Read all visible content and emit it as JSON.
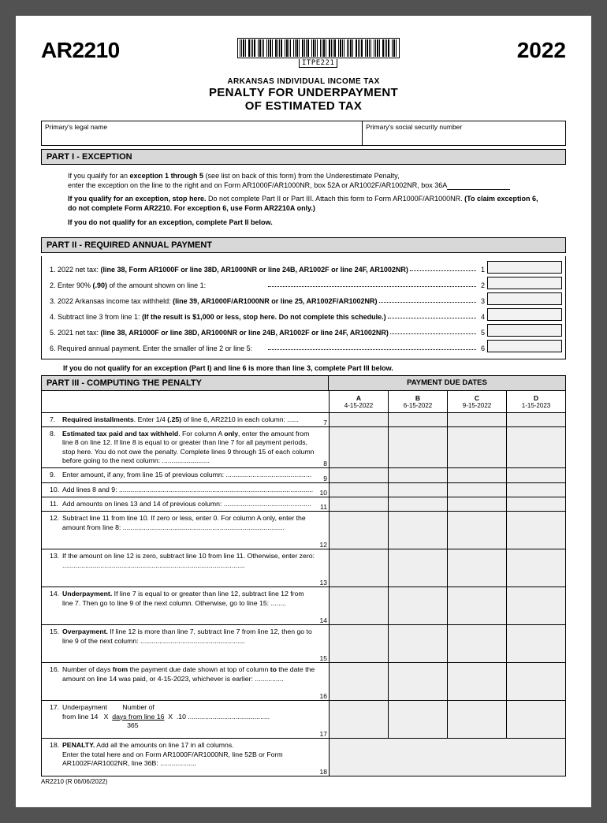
{
  "header": {
    "form_code": "AR2210",
    "barcode_label": "ITPE221",
    "year": "2022"
  },
  "title": {
    "line1": "ARKANSAS INDIVIDUAL INCOME TAX",
    "line2": "PENALTY FOR UNDERPAYMENT",
    "line3": "OF ESTIMATED TAX"
  },
  "name_row": {
    "left_label": "Primary's legal name",
    "right_label": "Primary's social security number"
  },
  "part1": {
    "header": "PART I - EXCEPTION",
    "p1a": "If you qualify for an ",
    "p1b": "exception 1 through 5",
    "p1c": " (see list on back of this form) from the Underestimate Penalty,",
    "p1d": "enter the exception on the line to the right and on Form AR1000F/AR1000NR, box 52A or AR1002F/AR1002NR, box 36A",
    "p2a": "If you qualify for an exception, stop here.",
    "p2b": " Do not complete Part II or Part III. Attach this form to Form AR1000F/AR1000NR. ",
    "p2c": "(To claim exception 6, do not complete Form AR2210. For exception 6, use Form AR2210A only.)",
    "p3": "If you do not qualify for an exception, complete Part II below."
  },
  "part2": {
    "header": "PART II - REQUIRED ANNUAL PAYMENT",
    "lines": [
      {
        "n": "1.",
        "t1": "2022 net tax: ",
        "b": "(line 38, Form AR1000F or line 38D, AR1000NR or line 24B, AR1002F or line 24F, AR1002NR)",
        "t2": "",
        "num": "1"
      },
      {
        "n": "2.",
        "t1": "Enter 90% ",
        "b": "(.90)",
        "t2": " of the amount shown on line 1:",
        "num": "2"
      },
      {
        "n": "3.",
        "t1": "2022 Arkansas income tax withheld: ",
        "b": "(line 39, AR1000F/AR1000NR or line 25, AR1002F/AR1002NR)",
        "t2": "",
        "num": "3"
      },
      {
        "n": "4.",
        "t1": "Subtract line 3 from line 1: ",
        "b": "(If the result is $1,000 or less, stop here. Do not complete this schedule.)",
        "t2": "",
        "num": "4"
      },
      {
        "n": "5.",
        "t1": "2021 net tax: ",
        "b": "(line 38, AR1000F or line 38D, AR1000NR or line 24B, AR1002F or line 24F, AR1002NR)",
        "t2": "",
        "num": "5"
      },
      {
        "n": "6.",
        "t1": "Required annual payment. Enter the smaller of line 2 or line 5:",
        "b": "",
        "t2": "",
        "num": "6"
      }
    ],
    "callout": "If you do not qualify for an exception (Part I) and line 6 is more than line 3, complete Part III below."
  },
  "part3": {
    "header_left": "PART III - COMPUTING THE PENALTY",
    "header_right": "PAYMENT DUE DATES",
    "dates": [
      {
        "col": "A",
        "date": "4-15-2022"
      },
      {
        "col": "B",
        "date": "6-15-2022"
      },
      {
        "col": "C",
        "date": "9-15-2022"
      },
      {
        "col": "D",
        "date": "1-15-2023"
      }
    ],
    "rows": [
      {
        "n": "7.",
        "html": "<b>Required installments</b>. Enter 1/4 <b>(.25)</b> of line 6, AR2210 in each column: ......",
        "rn": "7",
        "cells": 4
      },
      {
        "n": "8.",
        "html": "<b>Estimated tax paid and tax withheld</b>. For column A <b>only</b>, enter the amount from line 8 on line 12. If line 8 is equal to or greater than line 7 for all payment periods, stop here. You do not owe the penalty. Complete lines 9 through 15 of each column before going to the next column: .........................",
        "rn": "8",
        "cells": 4,
        "tall": true
      },
      {
        "n": "9.",
        "html": "Enter amount, if any, from line 15 of previous column: .............................................",
        "rn": "9",
        "cells": 4
      },
      {
        "n": "10.",
        "html": "Add lines 8 and 9: ......................................................................................................",
        "rn": "10",
        "cells": 4
      },
      {
        "n": "11.",
        "html": "Add amounts on lines 13 and 14 of previous column: ..............................................",
        "rn": "11",
        "cells": 4
      },
      {
        "n": "12.",
        "html": "Subtract line 11 from line 10. If zero or less, enter 0. For column A only, enter the amount from line 8: .....................................................................................",
        "rn": "12",
        "cells": 4,
        "tall": true
      },
      {
        "n": "13.",
        "html": "If the amount on line 12 is zero, subtract line 10 from line 11. Otherwise, enter zero: ................................................................................................",
        "rn": "13",
        "cells": 4,
        "tall": true
      },
      {
        "n": "14.",
        "html": "<b>Underpayment.</b> If line 7 is equal to or greater than line 12, subtract line 12 from line 7. Then go to line 9 of the next column. Otherwise, go to line 15: ........",
        "rn": "14",
        "cells": 4,
        "tall": true
      },
      {
        "n": "15.",
        "html": "<b>Overpayment.</b> If line 12 is more than line 7, subtract line 7 from line 12, then go to line 9 of the next column: .......................................................",
        "rn": "15",
        "cells": 4,
        "tall": true
      },
      {
        "n": "16.",
        "html": "Number of days <b>from</b> the payment due date shown at top of column <b>to</b> the date the amount on line 14 was paid, or 4-15-2023, whichever is earlier: ...............",
        "rn": "16",
        "cells": 4,
        "tall": true
      },
      {
        "n": "17.",
        "html": "Underpayment&nbsp;&nbsp;&nbsp;&nbsp;&nbsp;&nbsp;&nbsp;&nbsp;Number of<br>from line 14&nbsp;&nbsp;&nbsp;X&nbsp;&nbsp;<u>days from line 16</u>&nbsp;&nbsp;X&nbsp;&nbsp;.10 ...........................................<br>&nbsp;&nbsp;&nbsp;&nbsp;&nbsp;&nbsp;&nbsp;&nbsp;&nbsp;&nbsp;&nbsp;&nbsp;&nbsp;&nbsp;&nbsp;&nbsp;&nbsp;&nbsp;&nbsp;&nbsp;&nbsp;&nbsp;&nbsp;&nbsp;&nbsp;&nbsp;&nbsp;&nbsp;&nbsp;&nbsp;&nbsp;&nbsp;&nbsp;&nbsp;365",
        "rn": "17",
        "cells": 4,
        "tall": true
      },
      {
        "n": "18.",
        "html": "<b>PENALTY.</b> Add all the amounts on line 17 in all columns.<br>Enter the total here and on Form AR1000F/AR1000NR, line 52B or Form AR1002F/AR1002NR, line 36B: ...................",
        "rn": "18",
        "cells": 1,
        "tall": true
      }
    ]
  },
  "footer": "AR2210 (R 06/06/2022)"
}
